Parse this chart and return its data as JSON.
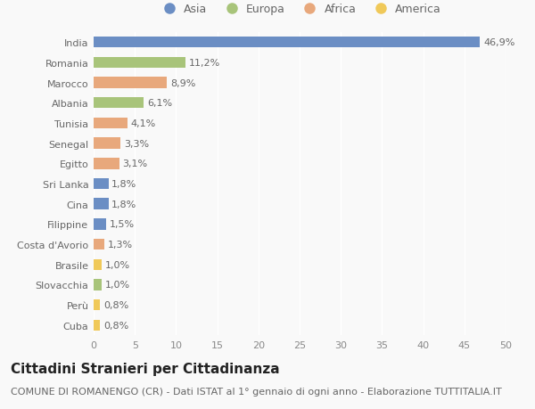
{
  "categories": [
    "Cuba",
    "Perù",
    "Slovacchia",
    "Brasile",
    "Costa d'Avorio",
    "Filippine",
    "Cina",
    "Sri Lanka",
    "Egitto",
    "Senegal",
    "Tunisia",
    "Albania",
    "Marocco",
    "Romania",
    "India"
  ],
  "values": [
    0.8,
    0.8,
    1.0,
    1.0,
    1.3,
    1.5,
    1.8,
    1.8,
    3.1,
    3.3,
    4.1,
    6.1,
    8.9,
    11.2,
    46.9
  ],
  "labels": [
    "0,8%",
    "0,8%",
    "1,0%",
    "1,0%",
    "1,3%",
    "1,5%",
    "1,8%",
    "1,8%",
    "3,1%",
    "3,3%",
    "4,1%",
    "6,1%",
    "8,9%",
    "11,2%",
    "46,9%"
  ],
  "colors": [
    "#f0c959",
    "#f0c959",
    "#a8c47a",
    "#f0c959",
    "#e8a87c",
    "#6b8ec4",
    "#6b8ec4",
    "#6b8ec4",
    "#e8a87c",
    "#e8a87c",
    "#e8a87c",
    "#a8c47a",
    "#e8a87c",
    "#a8c47a",
    "#6b8ec4"
  ],
  "legend_labels": [
    "Asia",
    "Europa",
    "Africa",
    "America"
  ],
  "legend_colors": [
    "#6b8ec4",
    "#a8c47a",
    "#e8a87c",
    "#f0c959"
  ],
  "title": "Cittadini Stranieri per Cittadinanza",
  "subtitle": "COMUNE DI ROMANENGO (CR) - Dati ISTAT al 1° gennaio di ogni anno - Elaborazione TUTTITALIA.IT",
  "xlim": [
    0,
    50
  ],
  "xticks": [
    0,
    5,
    10,
    15,
    20,
    25,
    30,
    35,
    40,
    45,
    50
  ],
  "background_color": "#f9f9f9",
  "bar_height": 0.55,
  "title_fontsize": 11,
  "subtitle_fontsize": 8,
  "label_fontsize": 8,
  "tick_fontsize": 8,
  "legend_fontsize": 9
}
